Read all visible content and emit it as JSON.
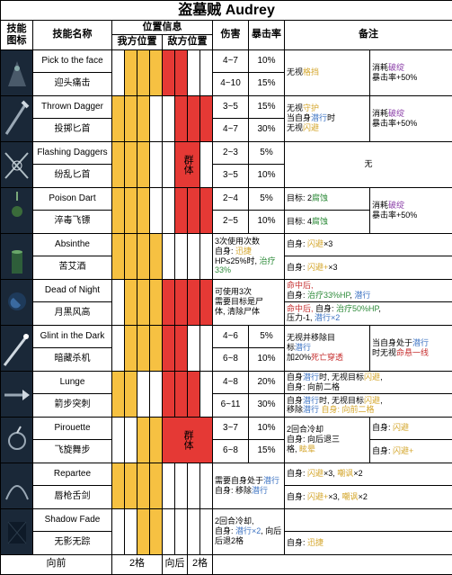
{
  "title": "盗墓贼 Audrey",
  "headers": {
    "icon": "技能图标",
    "name": "技能名称",
    "position_group": "位置信息",
    "self_pos": "我方位置",
    "enemy_pos": "敌方位置",
    "damage": "伤害",
    "crit": "暴击率",
    "note": "备注"
  },
  "pos_colors": {
    "self": "#f6c142",
    "enemy": "#e53935",
    "none": "#ffffff"
  },
  "aoe_label": "群体",
  "skills": [
    {
      "icon_type": "face",
      "name_en": "Pick to the face",
      "name_cn": "迎头痛击",
      "self_pos": [
        false,
        true,
        true,
        true
      ],
      "enemy_pos": [
        true,
        true,
        false,
        false
      ],
      "enemy_aoe": false,
      "rows": [
        {
          "dmg": "4~7",
          "crit": "10%"
        },
        {
          "dmg": "4~10",
          "crit": "15%"
        }
      ],
      "note_left": [
        [
          "无视",
          "flash-txt",
          "格挡"
        ]
      ],
      "note_right": [
        [
          "消耗",
          "purple-txt",
          "破绽"
        ],
        [
          "暴击率+50%"
        ]
      ]
    },
    {
      "icon_type": "dagger",
      "name_en": "Thrown Dagger",
      "name_cn": "投掷匕首",
      "self_pos": [
        true,
        true,
        true,
        false
      ],
      "enemy_pos": [
        false,
        true,
        true,
        true
      ],
      "enemy_aoe": false,
      "rows": [
        {
          "dmg": "3~5",
          "crit": "15%"
        },
        {
          "dmg": "4~7",
          "crit": "30%"
        }
      ],
      "note_left": [
        [
          "无视",
          "flash-txt",
          "守护"
        ],
        [
          "当自身",
          "blue-txt",
          "潜行",
          "时"
        ],
        [
          "无视",
          "flash-txt",
          "闪避"
        ]
      ],
      "note_right": [
        [
          "消耗",
          "purple-txt",
          "破绽"
        ],
        [
          "暴击率+50%"
        ]
      ]
    },
    {
      "icon_type": "flashing",
      "name_en": "Flashing Daggers",
      "name_cn": "纷乱匕首",
      "self_pos": [
        true,
        true,
        true,
        false
      ],
      "enemy_pos": [
        false,
        true,
        true,
        false
      ],
      "enemy_aoe": true,
      "rows": [
        {
          "dmg": "2~3",
          "crit": "5%"
        },
        {
          "dmg": "3~5",
          "crit": "10%"
        }
      ],
      "note_full": [
        [
          "无"
        ]
      ]
    },
    {
      "icon_type": "poison",
      "name_en": "Poison Dart",
      "name_cn": "淬毒飞镖",
      "self_pos": [
        true,
        true,
        true,
        false
      ],
      "enemy_pos": [
        false,
        true,
        true,
        true
      ],
      "enemy_aoe": false,
      "rows": [
        {
          "dmg": "2~4",
          "crit": "5%",
          "note_l": [
            [
              "目标: 2",
              "green-txt",
              "腐蚀"
            ]
          ]
        },
        {
          "dmg": "2~5",
          "crit": "10%",
          "note_l": [
            [
              "目标: 4",
              "green-txt",
              "腐蚀"
            ]
          ]
        }
      ],
      "note_right": [
        [
          "消耗",
          "purple-txt",
          "破绽"
        ],
        [
          "暴击率+50%"
        ]
      ]
    },
    {
      "icon_type": "absinthe",
      "name_en": "Absinthe",
      "name_cn": "苦艾酒",
      "self_pos": [
        true,
        true,
        true,
        true
      ],
      "enemy_pos": [
        false,
        false,
        false,
        false
      ],
      "enemy_aoe": false,
      "rows": [
        {
          "note_l": [
            [
              "自身: ",
              "flash-txt",
              "闪避",
              "×3"
            ]
          ]
        },
        {
          "note_l": [
            [
              "自身: ",
              "flash-txt",
              "闪避+",
              "×3"
            ]
          ]
        }
      ],
      "desc": [
        [
          "3次使用次数"
        ],
        [
          "自身: ",
          "flash-txt",
          "迅捷"
        ],
        [
          "HP≤25%时, ",
          "green-txt",
          "治疗33%"
        ]
      ]
    },
    {
      "icon_type": "night",
      "name_en": "Dead of Night",
      "name_cn": "月黑风高",
      "self_pos": [
        false,
        true,
        true,
        true
      ],
      "enemy_pos": [
        true,
        true,
        true,
        true
      ],
      "enemy_aoe": false,
      "rows": [
        {
          "note_l": [
            [
              "red-txt",
              "命中后,"
            ],
            [
              "自身: ",
              "green-txt",
              "治疗33%HP",
              ", ",
              "blue-txt",
              "潜行"
            ]
          ]
        },
        {
          "note_l": [
            [
              "red-txt",
              "命中后,",
              " 自身: ",
              "green-txt",
              "治疗50%HP",
              ","
            ],
            [
              "压力-1, ",
              "blue-txt",
              "潜行×2"
            ]
          ]
        }
      ],
      "desc": [
        [
          "可使用3次"
        ],
        [
          "需要目标是尸"
        ],
        [
          "体, 清除尸体"
        ]
      ]
    },
    {
      "icon_type": "glint",
      "name_en": "Glint in the Dark",
      "name_cn": "暗藏杀机",
      "self_pos": [
        false,
        true,
        true,
        true
      ],
      "enemy_pos": [
        true,
        true,
        false,
        false
      ],
      "enemy_aoe": false,
      "rows": [
        {
          "dmg": "4~6",
          "crit": "5%"
        },
        {
          "dmg": "6~8",
          "crit": "10%"
        }
      ],
      "note_left": [
        [
          "无视并移除目"
        ],
        [
          "标",
          "blue-txt",
          "潜行"
        ],
        [
          "加20%",
          "red-txt",
          "死亡穿透"
        ]
      ],
      "note_right": [
        [
          "当自身处于",
          "blue-txt",
          "潜行"
        ],
        [
          "时无视",
          "red-txt",
          "命悬一线"
        ]
      ]
    },
    {
      "icon_type": "lunge",
      "name_en": "Lunge",
      "name_cn": "箭步突刺",
      "self_pos": [
        true,
        true,
        false,
        false
      ],
      "enemy_pos": [
        true,
        true,
        true,
        false
      ],
      "enemy_aoe": false,
      "rows": [
        {
          "dmg": "4~8",
          "crit": "20%",
          "note_l": [
            [
              "自身",
              "blue-txt",
              "潜行",
              "时, 无视目标",
              "flash-txt",
              "闪避",
              ","
            ],
            [
              "自身: 向前二格"
            ]
          ]
        },
        {
          "dmg": "6~11",
          "crit": "30%",
          "note_l": [
            [
              "自身",
              "blue-txt",
              "潜行",
              "时, 无视目标",
              "flash-txt",
              "闪避",
              ","
            ],
            [
              "移除",
              "blue-txt",
              "潜行",
              " ",
              "flash-txt",
              "自身: 向前二格"
            ]
          ]
        }
      ]
    },
    {
      "icon_type": "pirouette",
      "name_en": "Pirouette",
      "name_cn": "飞旋舞步",
      "self_pos": [
        false,
        false,
        true,
        true
      ],
      "enemy_pos": [
        true,
        true,
        true,
        true
      ],
      "enemy_aoe": true,
      "rows": [
        {
          "dmg": "3~7",
          "crit": "10%",
          "note_r": [
            [
              "自身: ",
              "flash-txt",
              "闪避"
            ]
          ]
        },
        {
          "dmg": "6~8",
          "crit": "15%",
          "note_r": [
            [
              "自身: ",
              "flash-txt",
              "闪避+"
            ]
          ]
        }
      ],
      "note_left": [
        [
          "2回合冷却"
        ],
        [
          "自身: 向后退三"
        ],
        [
          "格, ",
          "flash-txt",
          "眩晕"
        ]
      ]
    },
    {
      "icon_type": "repartee",
      "name_en": "Repartee",
      "name_cn": "唇枪舌剑",
      "self_pos": [
        true,
        true,
        true,
        true
      ],
      "enemy_pos": [
        false,
        false,
        false,
        false
      ],
      "enemy_aoe": false,
      "rows": [
        {
          "note_l": [
            [
              "自身: ",
              "flash-txt",
              "闪避",
              "×3, ",
              "flash-txt",
              "嘲讽",
              "×2"
            ]
          ]
        },
        {
          "note_l": [
            [
              "自身: ",
              "flash-txt",
              "闪避+",
              "×3, ",
              "flash-txt",
              "嘲讽",
              "×2"
            ]
          ]
        }
      ],
      "desc": [
        [
          "需要自身处于",
          "blue-txt",
          "潜行"
        ],
        [
          "自身: 移除",
          "blue-txt",
          "潜行"
        ]
      ]
    },
    {
      "icon_type": "fade",
      "name_en": "Shadow Fade",
      "name_cn": "无影无踪",
      "self_pos": [
        false,
        false,
        true,
        true
      ],
      "enemy_pos": [
        false,
        false,
        false,
        false
      ],
      "enemy_aoe": false,
      "rows": [
        {
          "note_l": [
            [
              ""
            ]
          ]
        },
        {
          "note_l": [
            [
              "自身: ",
              "flash-txt",
              "迅捷"
            ]
          ]
        }
      ],
      "desc": [
        [
          "2回合冷却,"
        ],
        [
          "自身: ",
          "blue-txt",
          "潜行×2",
          ", 向后后退2格"
        ]
      ]
    }
  ],
  "footer": {
    "forward": "向前",
    "forward_n": "2格",
    "backward": "向后",
    "backward_n": "2格"
  }
}
